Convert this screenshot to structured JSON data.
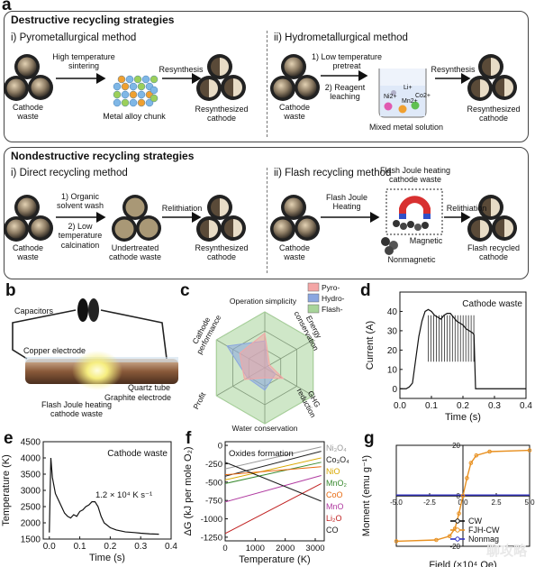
{
  "panel_a": {
    "letter": "a",
    "destructive": {
      "title": "Destructive recycling strategies",
      "pyro": {
        "title": "i) Pyrometallurgical method",
        "cathode_waste": "Cathode\nwaste",
        "step": "High temperature\nsintering",
        "chunk": "Metal alloy chunk",
        "resynthesis": "Resynthesis",
        "product": "Resynthesized\ncathode"
      },
      "hydro": {
        "title": "ii) Hydrometallurgical method",
        "cathode_waste": "Cathode\nwaste",
        "step1": "1) Low temperature\npretreat",
        "step2": "2) Reagent\nleaching",
        "ions": [
          "Li+",
          "Ni2+",
          "Mn2+",
          "Co2+"
        ],
        "solution": "Mixed metal solution",
        "resynthesis": "Resynthesis",
        "product": "Resynthesized\ncathode"
      }
    },
    "nondestructive": {
      "title": "Nondestructive recycling strategies",
      "direct": {
        "title": "i) Direct recycling method",
        "cathode_waste": "Cathode\nwaste",
        "step1": "1) Organic\nsolvent wash",
        "step2": "2) Low\ntemperature\ncalcination",
        "intermediate": "Undertreated\ncathode waste",
        "relithiation": "Relithiation",
        "product": "Resynthesized\ncathode"
      },
      "flash": {
        "title": "ii) Flash recycling method",
        "cathode_waste": "Cathode\nwaste",
        "step": "Flash Joule\nHeating",
        "heated": "Flash Joule heating\ncathode waste",
        "magnetic": "Magnetic",
        "nonmagnetic": "Nonmagnetic",
        "relithiation": "Relithiation",
        "product": "Flash recycled\ncathode"
      }
    }
  },
  "panel_b": {
    "letter": "b",
    "labels": {
      "capacitors": "Capacitors",
      "copper": "Copper electrode",
      "quartz": "Quartz tube",
      "graphite": "Graphite electrode",
      "fjh": "Flash Joule heating\ncathode waste"
    }
  },
  "panel_c": {
    "letter": "c",
    "chart_data": {
      "type": "radar",
      "axes": [
        "Operation simplicity",
        "Energy\nconservation",
        "GHG\nreduction",
        "Water conservation",
        "Profit",
        "Cathode\nperformance"
      ],
      "series": [
        {
          "name": "Pyro-",
          "color": "#f4a6a6",
          "values": [
            0.62,
            0.1,
            0.38,
            0.18,
            0.42,
            0.52
          ]
        },
        {
          "name": "Hydro-",
          "color": "#8aa6e0",
          "values": [
            0.48,
            0.06,
            0.22,
            0.4,
            0.36,
            0.78
          ]
        },
        {
          "name": "Flash-",
          "color": "#a8d49a",
          "values": [
            1,
            1,
            1,
            1,
            1,
            1
          ]
        }
      ],
      "legend_position": "top-right"
    }
  },
  "panel_d": {
    "letter": "d",
    "chart_data": {
      "type": "line",
      "annotation": "Cathode waste",
      "xlabel": "Time (s)",
      "ylabel": "Current (A)",
      "xlim": [
        0,
        0.4
      ],
      "ylim": [
        -5,
        50
      ],
      "xticks": [
        "0.0",
        "0.1",
        "0.2",
        "0.3",
        "0.4"
      ],
      "yticks": [
        "0",
        "10",
        "20",
        "30",
        "40"
      ],
      "series": [
        {
          "color": "#111111",
          "x": [
            0.0,
            0.01,
            0.02,
            0.03,
            0.04,
            0.05,
            0.06,
            0.07,
            0.08,
            0.09,
            0.1,
            0.11,
            0.12,
            0.13,
            0.14,
            0.15,
            0.16,
            0.17,
            0.18,
            0.19,
            0.2,
            0.21,
            0.22,
            0.23,
            0.235,
            0.24,
            0.25,
            0.27,
            0.3,
            0.33,
            0.36,
            0.4
          ],
          "y": [
            0,
            0,
            0,
            1,
            3,
            15,
            27,
            35,
            40,
            41,
            40,
            38,
            37,
            36,
            38,
            39,
            39,
            37,
            35,
            34,
            33,
            31,
            30,
            29,
            28,
            0,
            0,
            0,
            0,
            0,
            0,
            0
          ]
        }
      ]
    }
  },
  "panel_e": {
    "letter": "e",
    "chart_data": {
      "type": "line",
      "annotation": "Cathode waste",
      "rate_label": "1.2 × 10⁴ K s⁻¹",
      "xlabel": "Time (s)",
      "ylabel": "Temperature (K)",
      "xlim": [
        -0.02,
        0.4
      ],
      "ylim": [
        1500,
        4500
      ],
      "xticks": [
        "0.0",
        "0.1",
        "0.2",
        "0.3",
        "0.4"
      ],
      "yticks": [
        "1500",
        "2000",
        "2500",
        "3000",
        "3500",
        "4000",
        "4500"
      ],
      "series": [
        {
          "color": "#111111",
          "x": [
            0.0,
            0.005,
            0.01,
            0.02,
            0.03,
            0.04,
            0.05,
            0.06,
            0.07,
            0.08,
            0.09,
            0.1,
            0.11,
            0.12,
            0.13,
            0.14,
            0.15,
            0.16,
            0.17,
            0.18,
            0.2,
            0.22,
            0.25,
            0.28,
            0.3,
            0.33,
            0.36
          ],
          "y": [
            1700,
            4000,
            3400,
            2900,
            2700,
            2500,
            2300,
            2200,
            2150,
            2250,
            2200,
            2350,
            2400,
            2500,
            2550,
            2650,
            2650,
            2500,
            2200,
            2000,
            1850,
            1780,
            1720,
            1700,
            1680,
            1660,
            1650
          ]
        }
      ]
    }
  },
  "panel_f": {
    "letter": "f",
    "chart_data": {
      "type": "line",
      "annotation": "Oxides formation",
      "xlabel": "Temperature (K)",
      "ylabel": "ΔG (kJ per mole O₂)",
      "xlim": [
        0,
        3300
      ],
      "ylim": [
        -1300,
        50
      ],
      "xticks": [
        "0",
        "1000",
        "2000",
        "3000"
      ],
      "yticks": [
        "0",
        "-250",
        "-500",
        "-750",
        "-1000",
        "-1250"
      ],
      "series": [
        {
          "name": "Ni₃O₄",
          "color": "#999999",
          "x": [
            0,
            3200
          ],
          "y": [
            -320,
            -20
          ]
        },
        {
          "name": "Co₃O₄",
          "color": "#222222",
          "x": [
            0,
            3200
          ],
          "y": [
            -420,
            -80
          ]
        },
        {
          "name": "NiO",
          "color": "#d8a800",
          "x": [
            0,
            3200
          ],
          "y": [
            -470,
            -170
          ]
        },
        {
          "name": "MnO₂",
          "color": "#3a8a30",
          "x": [
            0,
            3200
          ],
          "y": [
            -520,
            -230
          ]
        },
        {
          "name": "CoO",
          "color": "#e86a10",
          "x": [
            0,
            3200
          ],
          "y": [
            -400,
            -290
          ]
        },
        {
          "name": "MnO",
          "color": "#b03aa0",
          "x": [
            0,
            3200
          ],
          "y": [
            -770,
            -410
          ]
        },
        {
          "name": "Li₂O",
          "color": "#c02020",
          "x": [
            0,
            3200
          ],
          "y": [
            -1200,
            -520
          ]
        },
        {
          "name": "CO",
          "color": "#1a1a1a",
          "x": [
            0,
            3200
          ],
          "y": [
            -230,
            -760
          ]
        }
      ]
    }
  },
  "panel_g": {
    "letter": "g",
    "chart_data": {
      "type": "line",
      "xlabel": "Field (×10⁴ Oe)",
      "ylabel": "Moment (emu g⁻¹)",
      "xlim": [
        -5,
        5
      ],
      "ylim": [
        -20,
        20
      ],
      "xticks": [
        "-5.0",
        "-2.5",
        "0.0",
        "2.5",
        "5.0"
      ],
      "yticks": [
        "20",
        "0",
        "-20"
      ],
      "series": [
        {
          "name": "CW",
          "color": "#111111",
          "x": [
            -5,
            5
          ],
          "y": [
            0,
            0
          ]
        },
        {
          "name": "FJH-CW",
          "color": "#e89020",
          "x": [
            -5,
            -2,
            -1,
            -0.6,
            -0.3,
            0,
            0.3,
            0.6,
            1,
            2,
            5
          ],
          "y": [
            -18,
            -17.5,
            -16,
            -13,
            -7,
            0,
            7,
            13,
            16,
            17.5,
            18
          ]
        },
        {
          "name": "Nonmag",
          "color": "#3030c0",
          "x": [
            -5,
            5
          ],
          "y": [
            0.3,
            0.3
          ]
        }
      ]
    }
  },
  "watermark": "聊攻略"
}
